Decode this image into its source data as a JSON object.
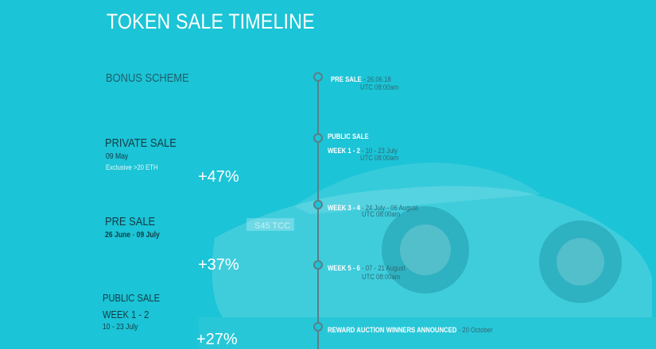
{
  "page_title": "TOKEN SALE TIMELINE",
  "bonus": {
    "heading": "BONUS SCHEME",
    "private_sale": {
      "title": "PRIVATE SALE",
      "date": "09 May",
      "note": "Exclusive >20 ETH",
      "percent": "+47%"
    },
    "pre_sale": {
      "title": "PRE SALE",
      "date_start": "26 June",
      "date_sep": " - ",
      "date_end": "09 July",
      "percent": "+37%"
    },
    "public_sale": {
      "title": "PUBLIC SALE",
      "week": "WEEK 1 - 2",
      "date": "10 - 23 July",
      "percent": "+27%"
    }
  },
  "timeline": {
    "pre_sale": {
      "label": "PRE SALE",
      "date": " - 26.06.18",
      "time": "UTC 08:00am"
    },
    "public_sale": {
      "label": "PUBLIC SALE",
      "week": "WEEK 1 - 2",
      "date": " - 10 - 23 July",
      "time": "UTC 08:00am"
    },
    "week34": {
      "label": "WEEK 3 - 4",
      "date": " - 24 July - 06 August",
      "time": "UTC 08:00am"
    },
    "week56": {
      "label": "WEEK 5 - 6",
      "date": " - 07 - 21 August",
      "time": "UTC 08:00am"
    },
    "reward": {
      "label": "REWARD AUCTION WINNERS ANNOUNCED",
      "date": " - 20 October"
    }
  },
  "background": {
    "plate_text": "S45 TCC",
    "color": "#1bc4d6"
  }
}
